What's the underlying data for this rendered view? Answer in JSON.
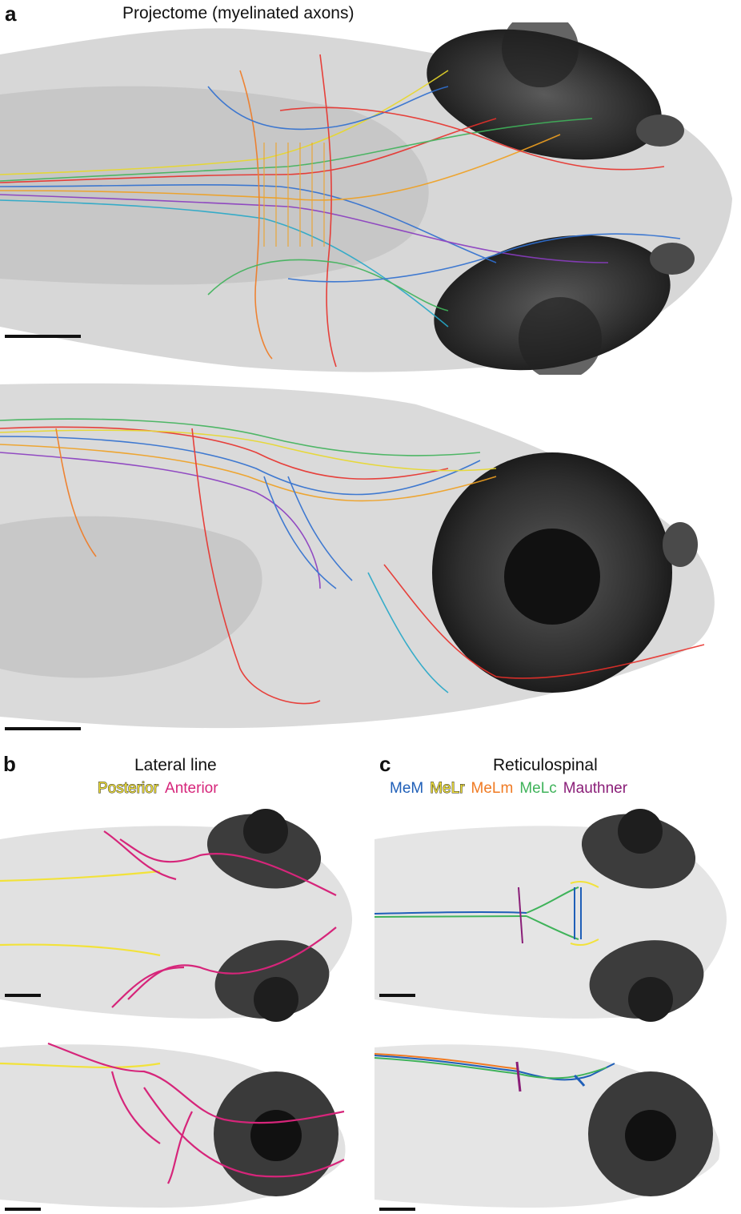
{
  "panel_a": {
    "letter": "a",
    "title": "Projectome (myelinated axons)"
  },
  "panel_b": {
    "letter": "b",
    "title": "Lateral line",
    "legend": [
      {
        "label": "Posterior",
        "color": "#f2e23a"
      },
      {
        "label": "Anterior",
        "color": "#d6257a"
      }
    ]
  },
  "panel_c": {
    "letter": "c",
    "title": "Reticulospinal",
    "legend": [
      {
        "label": "MeM",
        "color": "#1f5fb8"
      },
      {
        "label": "MeLr",
        "color": "#f2e23a"
      },
      {
        "label": "MeLm",
        "color": "#f07a22"
      },
      {
        "label": "MeLc",
        "color": "#3fb35a"
      },
      {
        "label": "Mauthner",
        "color": "#8a1e78"
      }
    ]
  },
  "colors": {
    "tissue": "#c9c9c9",
    "eye": "#3a3a3a",
    "projectome_palette": [
      "#e8302a",
      "#2f6fd0",
      "#f0a020",
      "#3fb35a",
      "#e8d82a",
      "#8a3cc0",
      "#f07a22",
      "#26a8c8"
    ]
  }
}
